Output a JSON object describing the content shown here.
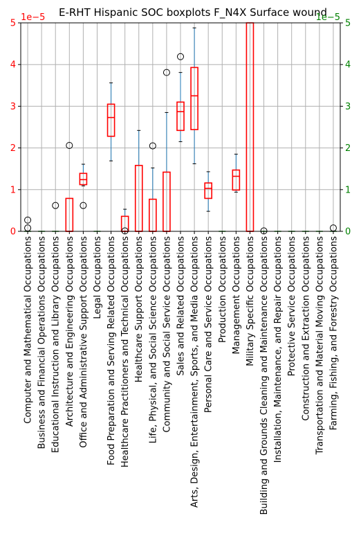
{
  "chart_data": {
    "type": "boxplot",
    "title": "E-RHT Hispanic SOC boxplots F_N4X Surface wound",
    "xlabel": "",
    "ylabel": "",
    "ylim": [
      0,
      5e-05
    ],
    "left_axis": {
      "ticks": [
        "0",
        "1",
        "2",
        "3",
        "4",
        "5"
      ],
      "offset_label": "1e−5",
      "color": "#ff0000"
    },
    "right_axis": {
      "ticks": [
        "0",
        "1",
        "2",
        "3",
        "4",
        "5"
      ],
      "offset_label": "1e−5",
      "color": "#008000"
    },
    "grid": true,
    "box_color": "#ff0000",
    "whisker_color": "#1f77b4",
    "flat_marker_color": "#008000",
    "categories": [
      "Computer and Mathematical Occupations",
      "Business and Financial Operations Occupations",
      "Educational Instruction and Library Occupations",
      "Architecture and Engineering Occupations",
      "Office and Administrative Support Occupations",
      "Legal Occupations",
      "Food Preparation and Serving Related Occupations",
      "Healthcare Practitioners and Technical Occupations",
      "Healthcare Support Occupations",
      "Life, Physical, and Social Science Occupations",
      "Community and Social Service Occupations",
      "Sales and Related Occupations",
      "Arts, Design, Entertainment, Sports, and Media Occupations",
      "Personal Care and Service Occupations",
      "Production Occupations",
      "Management Occupations",
      "Military Specific Occupations",
      "Building and Grounds Cleaning and Maintenance Occupations",
      "Installation, Maintenance, and Repair Occupations",
      "Protective Service Occupations",
      "Construction and Extraction Occupations",
      "Transportation and Material Moving Occupations",
      "Farming, Fishing, and Forestry Occupations"
    ],
    "boxes": [
      {
        "whislo": 0,
        "q1": 0,
        "med": 0,
        "q3": 0,
        "whishi": 0,
        "fliers": [
          8e-07,
          2.7e-06
        ]
      },
      {
        "whislo": 0,
        "q1": 0,
        "med": 0,
        "q3": 0,
        "whishi": 0,
        "fliers": []
      },
      {
        "whislo": 0,
        "q1": 0,
        "med": 0,
        "q3": 0,
        "whishi": 0,
        "fliers": [
          6.2e-06
        ]
      },
      {
        "whislo": 0,
        "q1": 0,
        "med": 0,
        "q3": 7.9e-06,
        "whishi": 7.9e-06,
        "fliers": [
          2.06e-05
        ]
      },
      {
        "whislo": 1.09e-05,
        "q1": 1.12e-05,
        "med": 1.24e-05,
        "q3": 1.39e-05,
        "whishi": 1.61e-05,
        "fliers": [
          6.2e-06
        ]
      },
      {
        "whislo": 0,
        "q1": 0,
        "med": 0,
        "q3": 0,
        "whishi": 0,
        "fliers": []
      },
      {
        "whislo": 1.69e-05,
        "q1": 2.28e-05,
        "med": 2.73e-05,
        "q3": 3.05e-05,
        "whishi": 3.56e-05,
        "fliers": []
      },
      {
        "whislo": 0,
        "q1": 0,
        "med": 0,
        "q3": 3.6e-06,
        "whishi": 5.3e-06,
        "fliers": [
          1e-07
        ]
      },
      {
        "whislo": 0,
        "q1": 0,
        "med": 0,
        "q3": 1.58e-05,
        "whishi": 2.42e-05,
        "fliers": []
      },
      {
        "whislo": 0,
        "q1": 0,
        "med": 0,
        "q3": 7.7e-06,
        "whishi": 1.52e-05,
        "fliers": [
          2.05e-05
        ]
      },
      {
        "whislo": 0,
        "q1": 0,
        "med": 0,
        "q3": 1.42e-05,
        "whishi": 2.85e-05,
        "fliers": [
          3.81e-05
        ]
      },
      {
        "whislo": 2.15e-05,
        "q1": 2.42e-05,
        "med": 2.87e-05,
        "q3": 3.1e-05,
        "whishi": 3.81e-05,
        "fliers": [
          4.19e-05
        ]
      },
      {
        "whislo": 1.62e-05,
        "q1": 2.44e-05,
        "med": 3.25e-05,
        "q3": 3.93e-05,
        "whishi": 4.88e-05,
        "fliers": []
      },
      {
        "whislo": 4.8e-06,
        "q1": 7.9e-06,
        "med": 1.03e-05,
        "q3": 1.16e-05,
        "whishi": 1.43e-05,
        "fliers": []
      },
      {
        "whislo": 0,
        "q1": 0,
        "med": 0,
        "q3": 0,
        "whishi": 0,
        "fliers": []
      },
      {
        "whislo": 9.4e-06,
        "q1": 9.9e-06,
        "med": 1.32e-05,
        "q3": 1.47e-05,
        "whishi": 1.85e-05,
        "fliers": []
      },
      {
        "whislo": 0,
        "q1": 0,
        "med": 0,
        "q3": 5.2e-05,
        "whishi": 5.2e-05,
        "fliers": []
      },
      {
        "whislo": 0,
        "q1": 0,
        "med": 0,
        "q3": 0,
        "whishi": 0,
        "fliers": [
          1e-07
        ]
      },
      {
        "whislo": 0,
        "q1": 0,
        "med": 0,
        "q3": 0,
        "whishi": 0,
        "fliers": []
      },
      {
        "whislo": 0,
        "q1": 0,
        "med": 0,
        "q3": 0,
        "whishi": 0,
        "fliers": []
      },
      {
        "whislo": 0,
        "q1": 0,
        "med": 0,
        "q3": 0,
        "whishi": 0,
        "fliers": []
      },
      {
        "whislo": 0,
        "q1": 0,
        "med": 0,
        "q3": 0,
        "whishi": 0,
        "fliers": []
      },
      {
        "whislo": 0,
        "q1": 0,
        "med": 0,
        "q3": 0,
        "whishi": 0,
        "fliers": [
          8e-07
        ]
      }
    ]
  }
}
